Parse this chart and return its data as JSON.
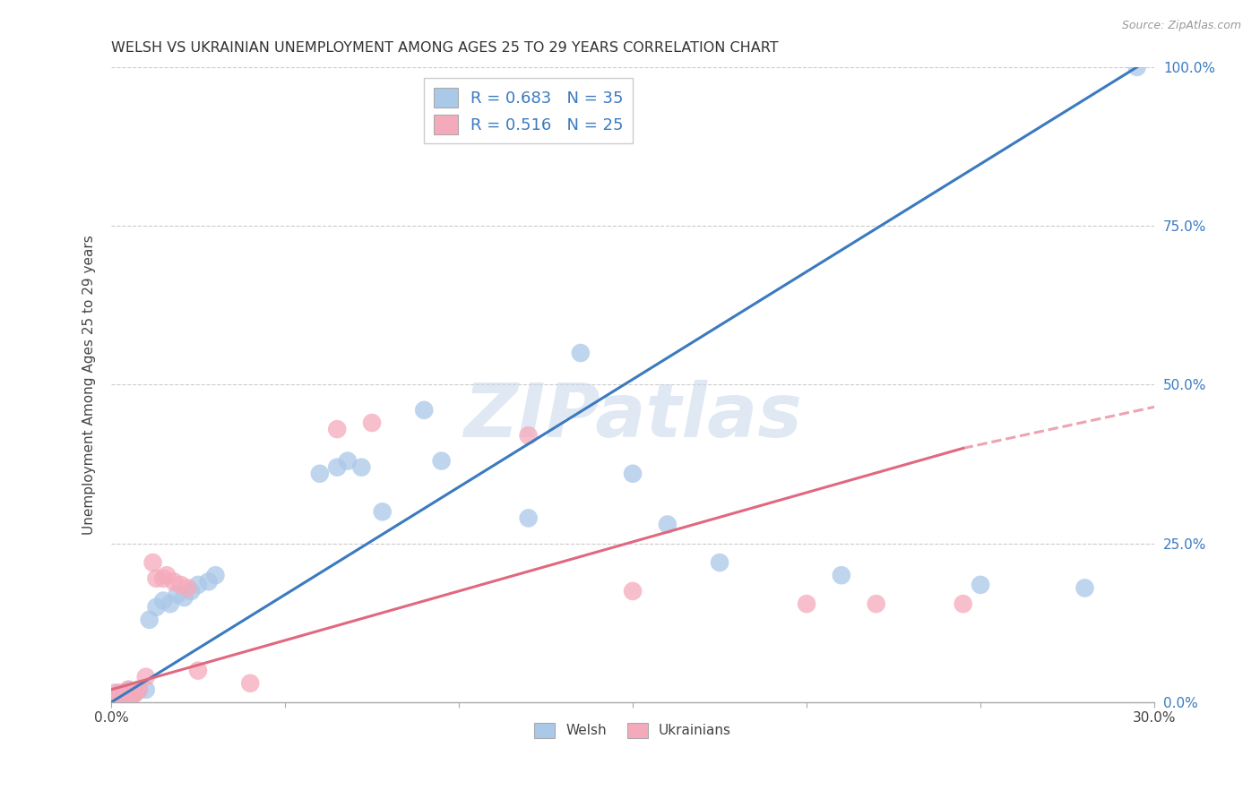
{
  "title": "WELSH VS UKRAINIAN UNEMPLOYMENT AMONG AGES 25 TO 29 YEARS CORRELATION CHART",
  "source": "Source: ZipAtlas.com",
  "ylabel": "Unemployment Among Ages 25 to 29 years",
  "xlim": [
    0.0,
    0.3
  ],
  "ylim": [
    0.0,
    1.0
  ],
  "xticks": [
    0.0,
    0.05,
    0.1,
    0.15,
    0.2,
    0.25,
    0.3
  ],
  "yticks": [
    0.0,
    0.25,
    0.5,
    0.75,
    1.0
  ],
  "yticklabels": [
    "0.0%",
    "25.0%",
    "50.0%",
    "75.0%",
    "100.0%"
  ],
  "welsh_color": "#aac8e8",
  "ukrainian_color": "#f5aabb",
  "welsh_line_color": "#3a7abf",
  "ukrainian_line_color": "#e06880",
  "legend_r_welsh": "R = 0.683",
  "legend_n_welsh": "N = 35",
  "legend_r_ukrainian": "R = 0.516",
  "legend_n_ukrainian": "N = 25",
  "watermark": "ZIPatlas",
  "welsh_line_x0": 0.0,
  "welsh_line_y0": 0.0,
  "welsh_line_x1": 0.295,
  "welsh_line_y1": 1.0,
  "ukrainian_line_solid_x0": 0.0,
  "ukrainian_line_solid_y0": 0.02,
  "ukrainian_line_solid_x1": 0.245,
  "ukrainian_line_solid_y1": 0.4,
  "ukrainian_line_dash_x0": 0.245,
  "ukrainian_line_dash_y0": 0.4,
  "ukrainian_line_dash_x1": 0.3,
  "ukrainian_line_dash_y1": 0.465,
  "welsh_x": [
    0.001,
    0.002,
    0.003,
    0.004,
    0.005,
    0.006,
    0.007,
    0.008,
    0.01,
    0.011,
    0.013,
    0.015,
    0.017,
    0.019,
    0.021,
    0.023,
    0.025,
    0.028,
    0.03,
    0.06,
    0.065,
    0.068,
    0.072,
    0.078,
    0.09,
    0.095,
    0.12,
    0.135,
    0.15,
    0.16,
    0.175,
    0.21,
    0.25,
    0.28,
    0.295
  ],
  "welsh_y": [
    0.01,
    0.015,
    0.01,
    0.015,
    0.02,
    0.01,
    0.015,
    0.02,
    0.02,
    0.13,
    0.15,
    0.16,
    0.155,
    0.17,
    0.165,
    0.175,
    0.185,
    0.19,
    0.2,
    0.36,
    0.37,
    0.38,
    0.37,
    0.3,
    0.46,
    0.38,
    0.29,
    0.55,
    0.36,
    0.28,
    0.22,
    0.2,
    0.185,
    0.18,
    1.0
  ],
  "ukrainian_x": [
    0.001,
    0.002,
    0.003,
    0.004,
    0.005,
    0.006,
    0.007,
    0.008,
    0.01,
    0.012,
    0.013,
    0.015,
    0.016,
    0.018,
    0.02,
    0.022,
    0.025,
    0.04,
    0.065,
    0.075,
    0.12,
    0.15,
    0.2,
    0.22,
    0.245
  ],
  "ukrainian_y": [
    0.015,
    0.01,
    0.015,
    0.015,
    0.02,
    0.01,
    0.015,
    0.02,
    0.04,
    0.22,
    0.195,
    0.195,
    0.2,
    0.19,
    0.185,
    0.18,
    0.05,
    0.03,
    0.43,
    0.44,
    0.42,
    0.175,
    0.155,
    0.155,
    0.155
  ]
}
